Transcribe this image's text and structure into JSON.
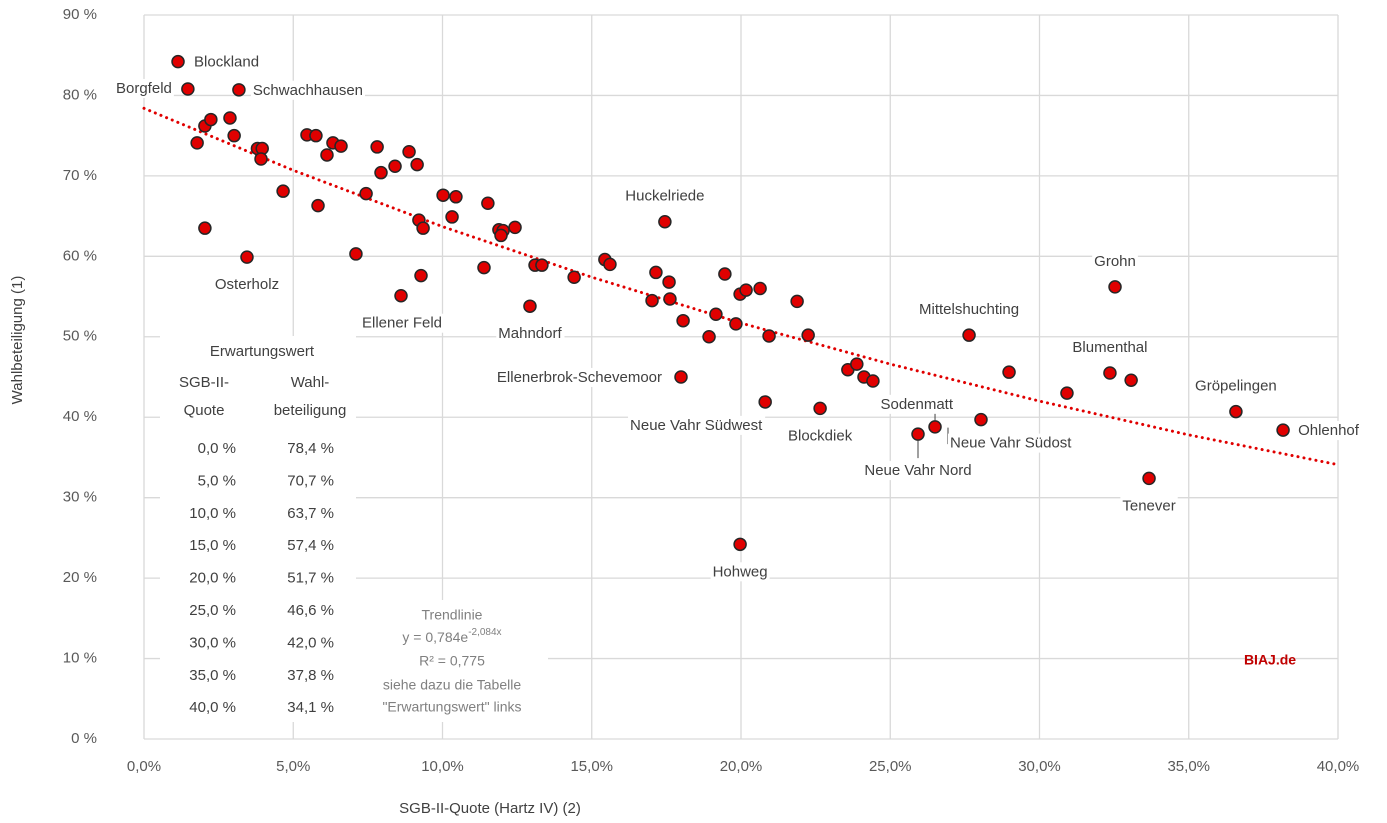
{
  "chart_data": {
    "type": "scatter",
    "x_label": "SGB-II-Quote (Hartz IV) (2)",
    "y_label": "Wahlbeteiligung (1)",
    "xlim": [
      0,
      40
    ],
    "xticks": [
      {
        "value": 0,
        "label": "0,0%"
      },
      {
        "value": 5,
        "label": "5,0%"
      },
      {
        "value": 10,
        "label": "10,0%"
      },
      {
        "value": 15,
        "label": "15,0%"
      },
      {
        "value": 20,
        "label": "20,0%"
      },
      {
        "value": 25,
        "label": "25,0%"
      },
      {
        "value": 30,
        "label": "30,0%"
      },
      {
        "value": 35,
        "label": "35,0%"
      },
      {
        "value": 40,
        "label": "40,0%"
      }
    ],
    "ylim": [
      0,
      90
    ],
    "yticks": [
      {
        "value": 0,
        "label": "0 %"
      },
      {
        "value": 10,
        "label": "10 %"
      },
      {
        "value": 20,
        "label": "20 %"
      },
      {
        "value": 30,
        "label": "30 %"
      },
      {
        "value": 40,
        "label": "40 %"
      },
      {
        "value": 50,
        "label": "50 %"
      },
      {
        "value": 60,
        "label": "60 %"
      },
      {
        "value": 70,
        "label": "70 %"
      },
      {
        "value": 80,
        "label": "80 %"
      },
      {
        "value": 90,
        "label": "90 %"
      }
    ],
    "grid": true,
    "color": "#e00000",
    "x": [
      1.14,
      1.47,
      3.18,
      2.04,
      2.24,
      2.88,
      3.02,
      1.78,
      3.8,
      3.96,
      3.92,
      2.04,
      3.45,
      4.66,
      5.46,
      5.76,
      6.33,
      6.6,
      6.13,
      5.83,
      7.44,
      7.1,
      7.81,
      7.94,
      8.41,
      8.88,
      9.15,
      8.61,
      9.21,
      9.35,
      9.28,
      10.02,
      10.45,
      10.32,
      11.52,
      11.39,
      11.89,
      12.03,
      11.96,
      12.43,
      12.93,
      13.1,
      13.33,
      14.41,
      15.44,
      15.61,
      17.45,
      17.15,
      17.59,
      17.62,
      17.02,
      18.06,
      17.99,
      18.93,
      19.16,
      19.46,
      19.83,
      19.97,
      20.17,
      20.64,
      20.81,
      19.97,
      20.94,
      21.88,
      22.25,
      22.65,
      23.58,
      23.88,
      24.12,
      24.42,
      25.93,
      26.5,
      28.04,
      27.64,
      28.98,
      30.92,
      32.53,
      32.36,
      33.07,
      33.67,
      36.58,
      38.16
    ],
    "values": [
      84.2,
      80.8,
      80.7,
      76.2,
      77.0,
      77.2,
      75.0,
      74.1,
      73.4,
      73.4,
      72.1,
      63.5,
      59.9,
      68.1,
      75.1,
      75.0,
      74.1,
      73.7,
      72.6,
      66.3,
      67.8,
      60.3,
      73.6,
      70.4,
      71.2,
      73.0,
      71.4,
      55.1,
      64.5,
      63.5,
      57.6,
      67.6,
      67.4,
      64.9,
      66.6,
      58.6,
      63.3,
      63.2,
      62.6,
      63.6,
      53.8,
      58.9,
      58.9,
      57.4,
      59.6,
      59.0,
      64.3,
      58.0,
      56.8,
      54.7,
      54.5,
      52.0,
      45.0,
      50.0,
      52.8,
      57.8,
      51.6,
      55.3,
      55.8,
      56.0,
      41.9,
      24.2,
      50.1,
      54.4,
      50.2,
      41.1,
      45.9,
      46.6,
      45.0,
      44.5,
      37.9,
      38.8,
      39.7,
      50.2,
      45.6,
      43.0,
      56.2,
      45.5,
      44.6,
      32.4,
      40.7,
      38.4
    ],
    "labels": [
      "Blockland",
      "Borgfeld",
      "Schwachhausen",
      null,
      null,
      null,
      null,
      null,
      null,
      null,
      null,
      null,
      "Osterholz",
      null,
      null,
      null,
      null,
      null,
      null,
      null,
      null,
      null,
      null,
      null,
      null,
      null,
      null,
      "Ellener Feld",
      null,
      null,
      null,
      null,
      null,
      null,
      null,
      null,
      null,
      null,
      null,
      null,
      "Mahndorf",
      null,
      null,
      null,
      null,
      null,
      "Huckelriede",
      null,
      null,
      null,
      null,
      null,
      "Ellenerbrok-Schevemoor",
      null,
      null,
      null,
      null,
      null,
      null,
      null,
      "Neue Vahr Südwest",
      "Hohweg",
      null,
      null,
      null,
      "Blockdiek",
      null,
      null,
      null,
      null,
      "Neue Vahr Nord",
      "Sodenmatt",
      "Neue Vahr Südost",
      "Mittelshuchting",
      null,
      null,
      "Grohn",
      "Blumenthal",
      null,
      "Tenever",
      "Gröpelingen",
      "Ohlenhof"
    ],
    "trendline": {
      "color": "#e00000",
      "x": [
        0,
        5,
        10,
        15,
        20,
        25,
        30,
        35,
        40
      ],
      "values": [
        78.4,
        70.7,
        63.7,
        57.4,
        51.7,
        46.6,
        42.0,
        37.8,
        34.1
      ],
      "lines": [
        "Trendlinie",
        "y = 0,784e",
        "-2,084x",
        "R² = 0,775",
        "siehe dazu die Tabelle",
        "\"Erwartungswert\" links"
      ]
    },
    "table": {
      "title": "Erwartungswert",
      "header": [
        [
          "SGB-II-",
          "Wahl-"
        ],
        [
          "Quote",
          "beteiligung"
        ]
      ],
      "rows": [
        [
          "0,0 %",
          "78,4 %"
        ],
        [
          "5,0 %",
          "70,7 %"
        ],
        [
          "10,0 %",
          "63,7 %"
        ],
        [
          "15,0 %",
          "57,4 %"
        ],
        [
          "20,0 %",
          "51,7 %"
        ],
        [
          "25,0 %",
          "46,6 %"
        ],
        [
          "30,0 %",
          "42,0 %"
        ],
        [
          "35,0 %",
          "37,8 %"
        ],
        [
          "40,0 %",
          "34,1 %"
        ]
      ]
    },
    "source": "BIAJ.de"
  }
}
